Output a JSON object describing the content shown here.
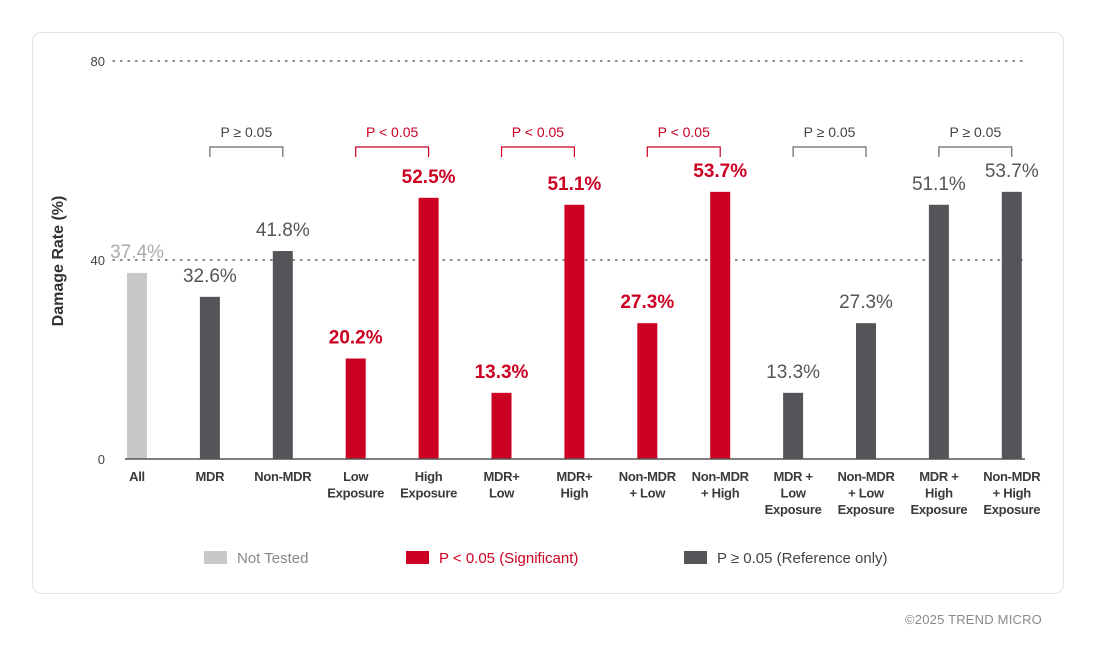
{
  "chart_data": {
    "type": "bar",
    "ylabel": "Damage Rate (%)",
    "ylim": [
      0,
      80
    ],
    "yticks": [
      0,
      40,
      80
    ],
    "grid": "dotted at 40 and 80",
    "legend_placement": "bottom",
    "categories": [
      [
        "All"
      ],
      [
        "MDR"
      ],
      [
        "Non-MDR"
      ],
      [
        "Low",
        "Exposure"
      ],
      [
        "High",
        "Exposure"
      ],
      [
        "MDR+",
        "Low"
      ],
      [
        "MDR+",
        "High"
      ],
      [
        "Non-MDR",
        "+ Low"
      ],
      [
        "Non-MDR",
        "+ High"
      ],
      [
        "MDR +",
        "Low",
        "Exposure"
      ],
      [
        "Non-MDR",
        "+ Low",
        "Exposure"
      ],
      [
        "MDR +",
        "High",
        "Exposure"
      ],
      [
        "Non-MDR",
        "+ High",
        "Exposure"
      ]
    ],
    "values": [
      37.4,
      32.6,
      41.8,
      20.2,
      52.5,
      13.3,
      51.1,
      27.3,
      53.7,
      13.3,
      27.3,
      51.1,
      53.7
    ],
    "data_labels": [
      "37.4%",
      "32.6%",
      "41.8%",
      "20.2%",
      "52.5%",
      "13.3%",
      "51.1%",
      "27.3%",
      "53.7%",
      "13.3%",
      "27.3%",
      "51.1%",
      "53.7%"
    ],
    "groups": [
      "not_tested",
      "reference",
      "reference",
      "significant",
      "significant",
      "significant",
      "significant",
      "significant",
      "significant",
      "reference",
      "reference",
      "reference",
      "reference"
    ],
    "comparisons": [
      {
        "pair": [
          1,
          2
        ],
        "label": "P ≥ 0.05",
        "group": "reference"
      },
      {
        "pair": [
          3,
          4
        ],
        "label": "P < 0.05",
        "group": "significant"
      },
      {
        "pair": [
          5,
          6
        ],
        "label": "P < 0.05",
        "group": "significant"
      },
      {
        "pair": [
          7,
          8
        ],
        "label": "P < 0.05",
        "group": "significant"
      },
      {
        "pair": [
          9,
          10
        ],
        "label": "P ≥ 0.05",
        "group": "reference"
      },
      {
        "pair": [
          11,
          12
        ],
        "label": "P ≥ 0.05",
        "group": "reference"
      }
    ],
    "legend": [
      {
        "key": "not_tested",
        "label": "Not Tested"
      },
      {
        "key": "significant",
        "label": "P < 0.05 (Significant)"
      },
      {
        "key": "reference",
        "label": "P ≥ 0.05 (Reference only)"
      }
    ]
  },
  "colors": {
    "not_tested": "#c8c8c8",
    "significant": "#cc0022",
    "reference": "#555559",
    "axis_text": "#444444",
    "label_gray": "#555559",
    "label_light": "#aaaaaa"
  },
  "footer": {
    "copyright": "©2025 TREND MICRO"
  }
}
